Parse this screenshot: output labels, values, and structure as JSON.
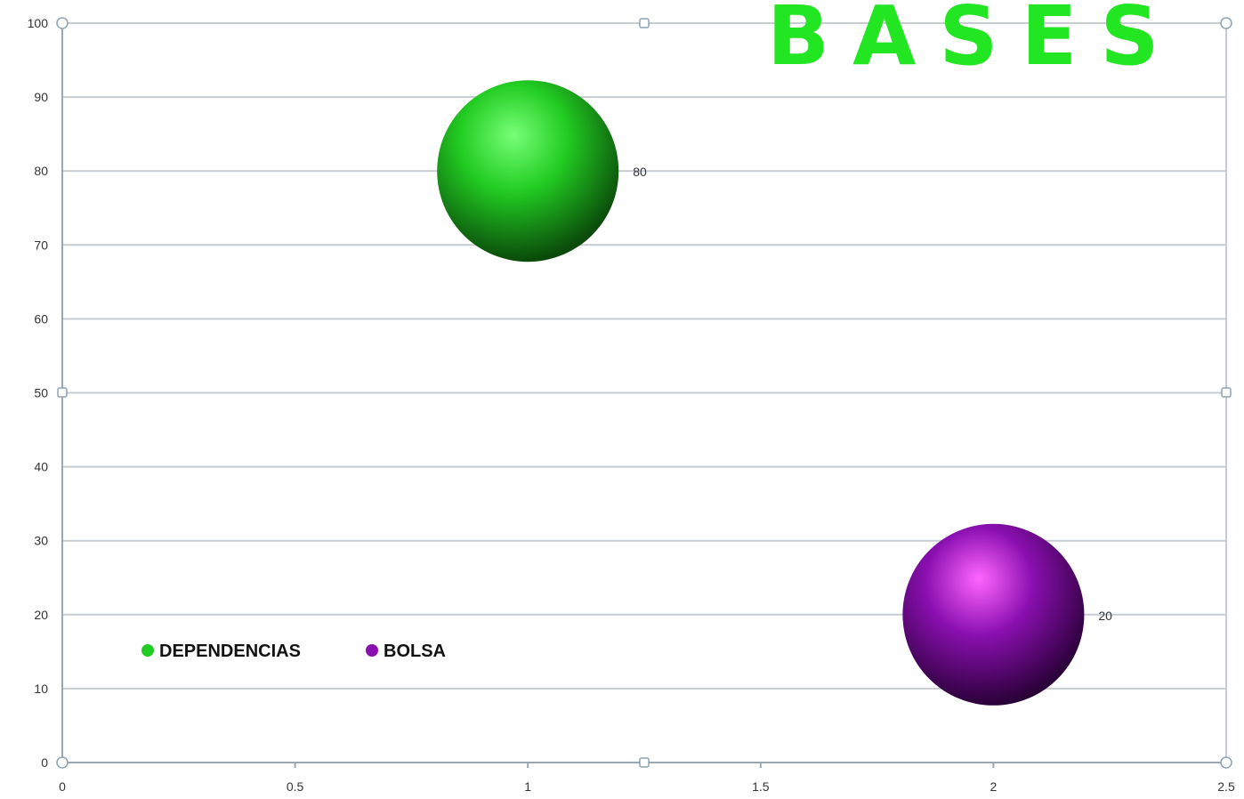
{
  "chart_data": {
    "type": "bubble",
    "title": "BASES",
    "xlim": [
      0,
      2.5
    ],
    "ylim": [
      0,
      100
    ],
    "x_ticks": [
      "0",
      "0.5",
      "1",
      "1.5",
      "2",
      "2.5"
    ],
    "y_ticks": [
      "0",
      "10",
      "20",
      "30",
      "40",
      "50",
      "60",
      "70",
      "80",
      "90",
      "100"
    ],
    "grid": true,
    "legend_position": "inside-bottom-left",
    "series": [
      {
        "name": "DEPENDENCIAS",
        "x": 1,
        "y": 80,
        "label": "80",
        "color": "#22cc22",
        "highlight": "#77ff77",
        "shadow": "#0a4a0a"
      },
      {
        "name": "BOLSA",
        "x": 2,
        "y": 20,
        "label": "20",
        "color": "#8a0fb0",
        "highlight": "#ff66ff",
        "shadow": "#2a0038"
      }
    ],
    "colors": {
      "title": "#22e622",
      "grid": "#c6ccd2",
      "axis": "#9aa6b0",
      "handle": "#8fa3b3"
    }
  }
}
